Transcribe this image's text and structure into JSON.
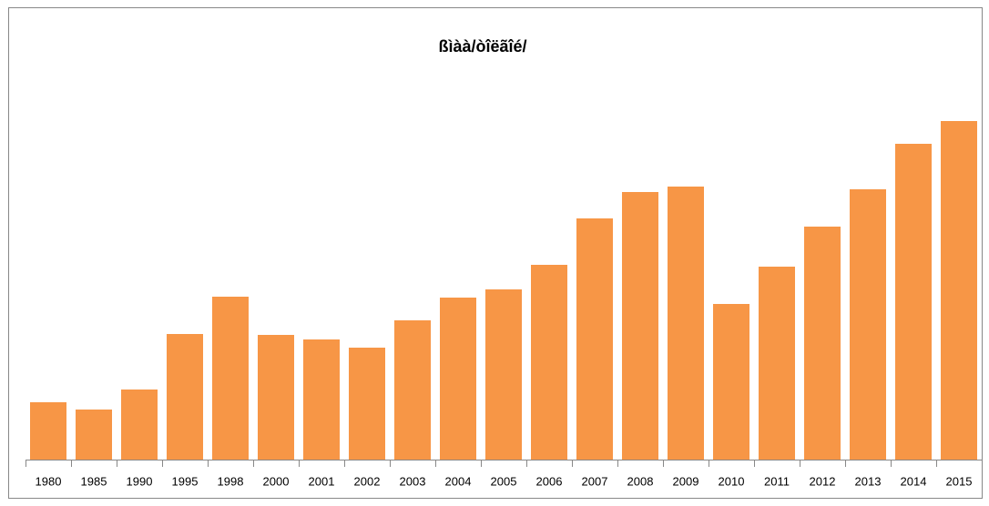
{
  "chart_data": {
    "type": "bar",
    "title": "ßìàà/òîëãîé/",
    "categories": [
      "1980",
      "1985",
      "1990",
      "1995",
      "1998",
      "2000",
      "2001",
      "2002",
      "2003",
      "2004",
      "2005",
      "2006",
      "2007",
      "2008",
      "2009",
      "2010",
      "2011",
      "2012",
      "2013",
      "2014",
      "2015"
    ],
    "values": [
      63,
      55,
      77,
      138,
      179,
      137,
      132,
      123,
      153,
      178,
      187,
      214,
      265,
      294,
      300,
      171,
      212,
      256,
      297,
      347,
      372
    ],
    "color": "#f79646",
    "ylim": [
      0,
      400
    ]
  }
}
